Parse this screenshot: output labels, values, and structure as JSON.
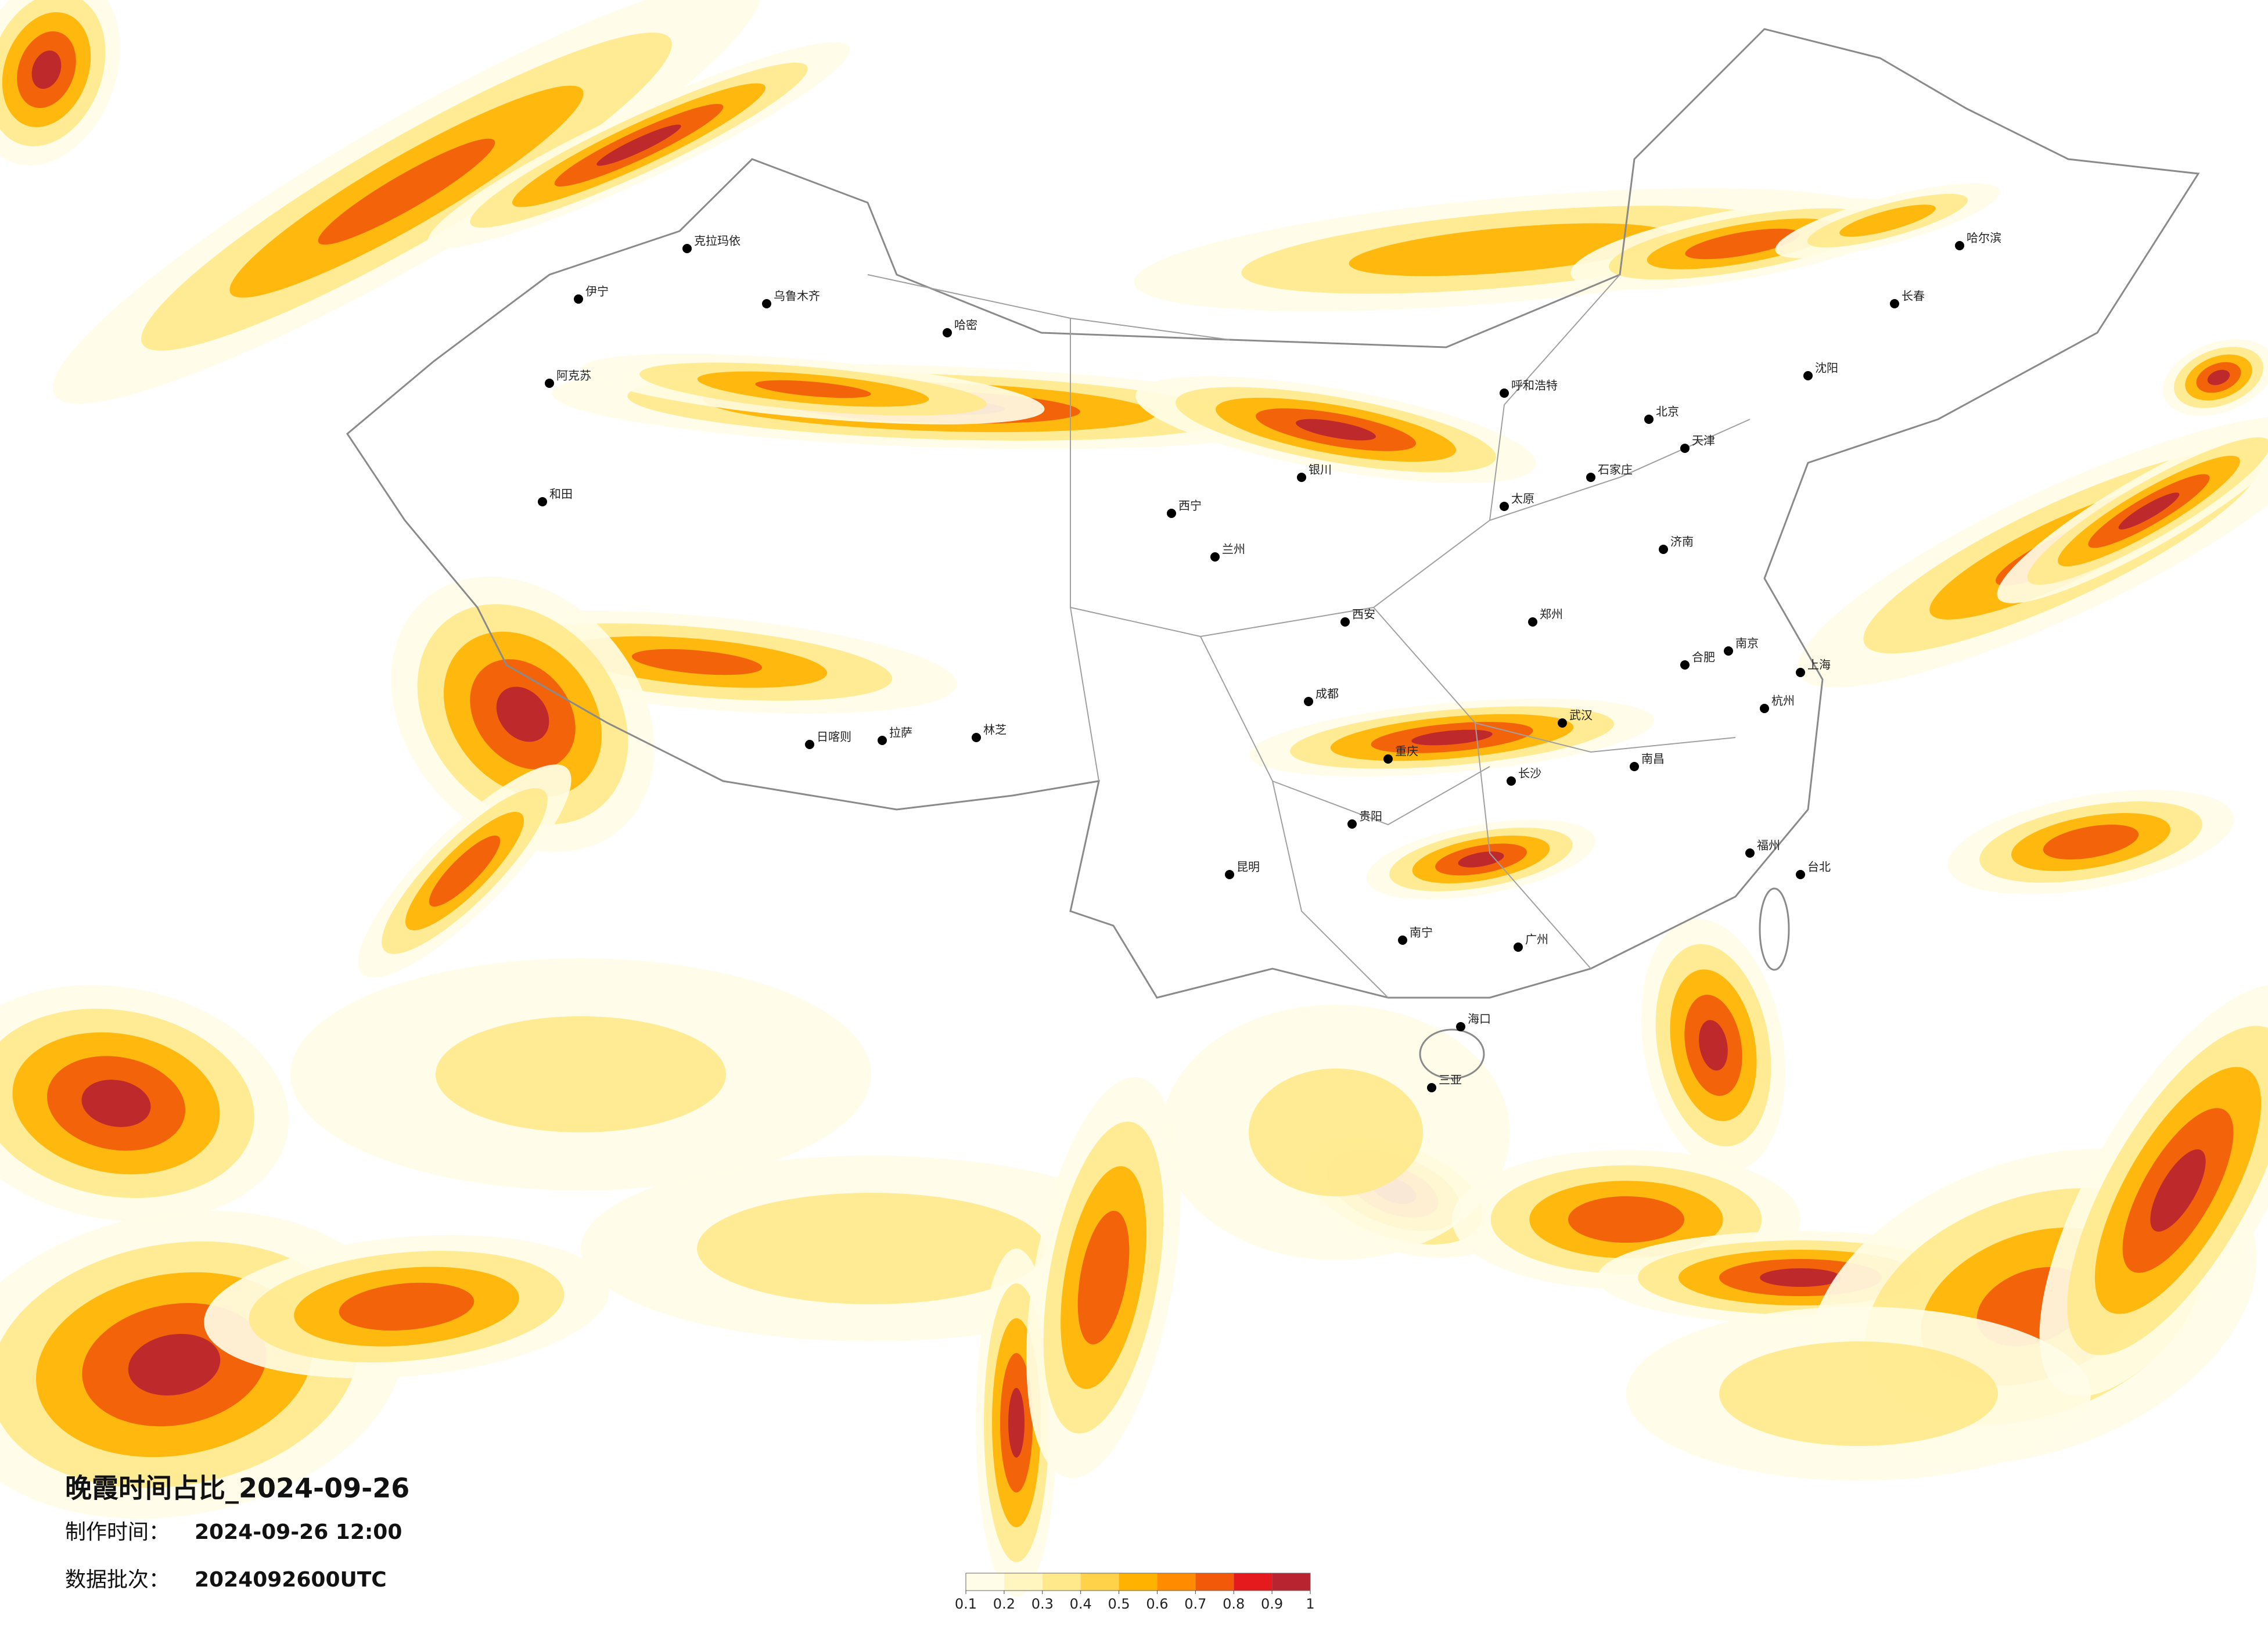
{
  "title": "晚霞时间占比_2024-09-26",
  "made_label": "制作时间：",
  "made_value": "2024-09-26 12:00",
  "batch_label": "数据批次：",
  "batch_value": "2024092600UTC",
  "colorbar": {
    "ticks": [
      0.1,
      0.2,
      0.3,
      0.4,
      0.5,
      0.6,
      0.7,
      0.8,
      0.9,
      1
    ],
    "colors": [
      "#fffde8",
      "#fff5bf",
      "#ffe98a",
      "#ffd24a",
      "#ffb300",
      "#ff8c00",
      "#f25a0a",
      "#e41a1c",
      "#b82430"
    ]
  },
  "cities": [
    "克拉玛依",
    "乌鲁木齐",
    "伊宁",
    "阿克苏",
    "和田",
    "哈密",
    "拉萨",
    "日喀则",
    "林芝",
    "西宁",
    "兰州",
    "银川",
    "成都",
    "重庆",
    "昆明",
    "贵阳",
    "南宁",
    "广州",
    "长沙",
    "武汉",
    "郑州",
    "西安",
    "北京",
    "天津",
    "石家庄",
    "太原",
    "呼和浩特",
    "济南",
    "南京",
    "上海",
    "杭州",
    "福州",
    "南昌",
    "合肥",
    "沈阳",
    "长春",
    "哈尔滨",
    "海口",
    "三亚",
    "台北"
  ]
}
